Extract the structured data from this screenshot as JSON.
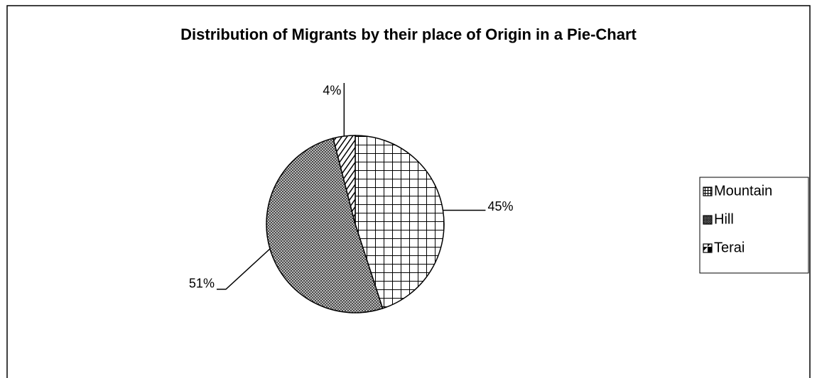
{
  "chart_data": {
    "type": "pie",
    "title": "Distribution of Migrants by their place of Origin in a Pie-Chart",
    "categories": [
      "Mountain",
      "Hill",
      "Terai"
    ],
    "values": [
      45,
      51,
      4
    ],
    "value_labels": [
      "45%",
      "51%",
      "4%"
    ],
    "legend": "right"
  }
}
